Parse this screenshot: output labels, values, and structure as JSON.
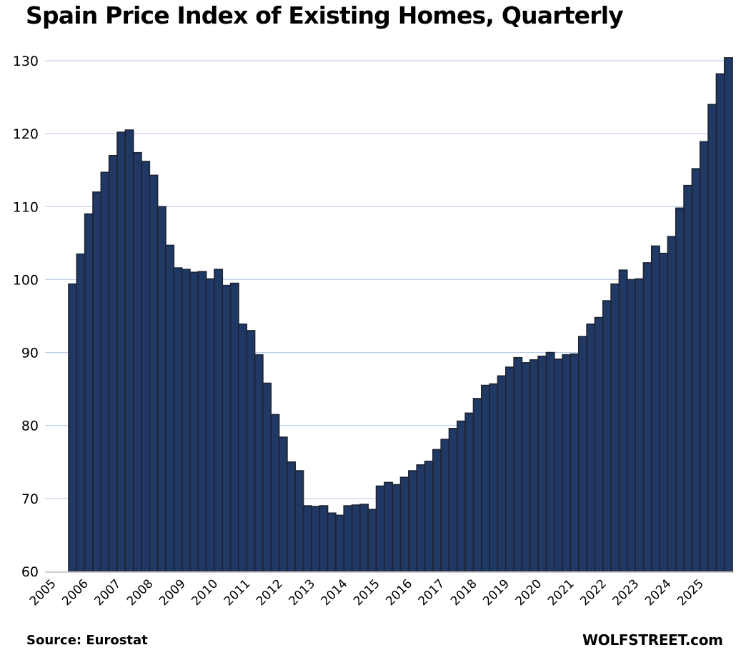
{
  "chart_data": {
    "type": "bar",
    "title": "Spain Price Index of Existing Homes, Quarterly",
    "xlabel": "",
    "ylabel": "",
    "ylim": [
      60,
      130
    ],
    "yticks": [
      60,
      70,
      80,
      90,
      100,
      110,
      120,
      130
    ],
    "x_tick_labels": [
      "2005",
      "2006",
      "2007",
      "2008",
      "2009",
      "2010",
      "2011",
      "2012",
      "2013",
      "2014",
      "2015",
      "2016",
      "2017",
      "2018",
      "2019",
      "2020",
      "2021",
      "2022",
      "2023",
      "2024",
      "2025"
    ],
    "first_period": "2005Q3",
    "frequency": "quarterly",
    "grid": true,
    "legend": "none",
    "colors": {
      "bar_fill": "#203864",
      "bar_edge": "#1c2433",
      "grid": "#b4c7e7",
      "axis": "#d0d0d0"
    },
    "values": [
      99.4,
      103.5,
      109.0,
      112.0,
      114.7,
      117.0,
      120.2,
      120.5,
      117.4,
      116.2,
      114.3,
      110.0,
      104.7,
      101.6,
      101.4,
      101.0,
      101.1,
      100.1,
      101.4,
      99.2,
      99.5,
      93.9,
      93.0,
      89.7,
      85.8,
      81.5,
      78.4,
      75.0,
      73.8,
      69.0,
      68.9,
      69.0,
      68.0,
      67.7,
      69.0,
      69.1,
      69.2,
      68.5,
      71.7,
      72.2,
      71.9,
      72.9,
      73.8,
      74.6,
      75.1,
      76.7,
      78.1,
      79.6,
      80.6,
      81.7,
      83.7,
      85.5,
      85.7,
      86.8,
      88.0,
      89.3,
      88.6,
      89.0,
      89.5,
      90.0,
      89.1,
      89.7,
      89.8,
      92.2,
      93.9,
      94.8,
      97.1,
      99.4,
      101.3,
      100.0,
      100.1,
      102.3,
      104.6,
      103.6,
      105.9,
      109.8,
      112.9,
      115.2,
      118.9,
      124.0,
      128.2,
      130.4
    ]
  },
  "footer": {
    "source": "Source: Eurostat",
    "credit": "WOLFSTREET.com"
  }
}
